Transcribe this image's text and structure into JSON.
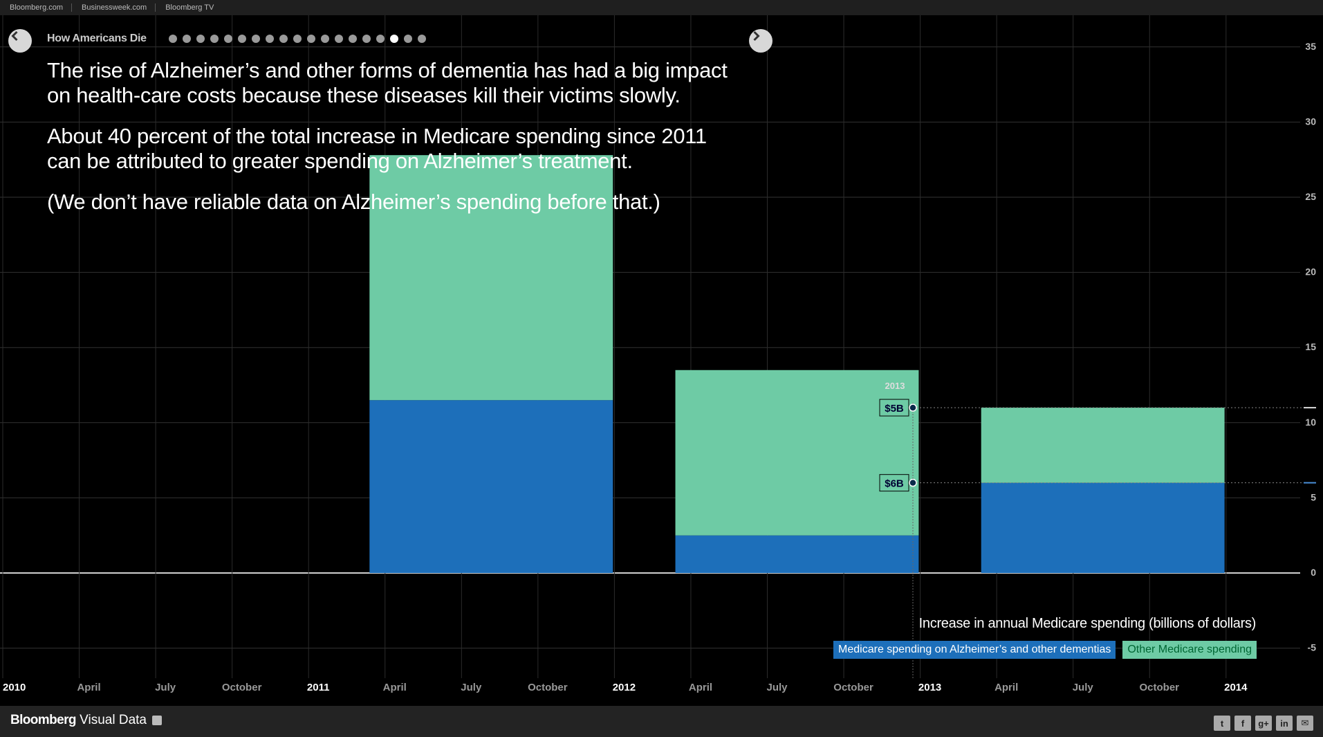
{
  "topnav": {
    "links": [
      "Bloomberg.com",
      "Businessweek.com",
      "Bloomberg TV"
    ]
  },
  "story": {
    "title": "How Americans Die",
    "dots_total": 19,
    "dots_active_index": 16,
    "paragraphs": [
      "The rise of Alzheimer’s and other forms of dementia has had a big impact on health-care costs because these diseases kill their victims slowly.",
      "About 40 percent of the total increase in Medicare spending since 2011 can be attributed to greater spending on Alzheimer’s treatment.",
      "(We don’t have reliable data on Alzheimer’s spending before that.)"
    ]
  },
  "chart_data": {
    "type": "bar",
    "stacked": true,
    "ylabel": "Increase in annual Medicare spending (billions of dollars)",
    "ylim": [
      -5,
      35
    ],
    "yticks": [
      -5,
      0,
      5,
      10,
      15,
      20,
      25,
      30,
      35
    ],
    "xlim": [
      "2010-01",
      "2014-01"
    ],
    "xtick_labels": [
      {
        "label": "2010",
        "major": true
      },
      {
        "label": "April",
        "major": false
      },
      {
        "label": "July",
        "major": false
      },
      {
        "label": "October",
        "major": false
      },
      {
        "label": "2011",
        "major": true
      },
      {
        "label": "April",
        "major": false
      },
      {
        "label": "July",
        "major": false
      },
      {
        "label": "October",
        "major": false
      },
      {
        "label": "2012",
        "major": true
      },
      {
        "label": "April",
        "major": false
      },
      {
        "label": "July",
        "major": false
      },
      {
        "label": "October",
        "major": false
      },
      {
        "label": "2013",
        "major": true
      },
      {
        "label": "April",
        "major": false
      },
      {
        "label": "July",
        "major": false
      },
      {
        "label": "October",
        "major": false
      },
      {
        "label": "2014",
        "major": true
      }
    ],
    "categories": [
      "2011",
      "2012",
      "2013"
    ],
    "series": [
      {
        "name": "Medicare spending on Alzheimer’s and other dementias",
        "color": "#1d6fba",
        "values": [
          11.5,
          2.5,
          6.0
        ]
      },
      {
        "name": "Other Medicare spending",
        "color": "#6ecba5",
        "values": [
          16.3,
          11.0,
          5.0
        ]
      }
    ],
    "hover": {
      "category_label": "2013",
      "labels": [
        "$6B",
        "$5B"
      ]
    },
    "grid": true,
    "legend_position": "bottom-right"
  },
  "footer": {
    "brand_bold": "Bloomberg",
    "brand_rest": " Visual Data",
    "share_icons": [
      "twitter-icon",
      "facebook-icon",
      "google-plus-icon",
      "linkedin-icon",
      "email-icon"
    ],
    "share_glyphs": [
      "t",
      "f",
      "g+",
      "in",
      "✉"
    ]
  }
}
